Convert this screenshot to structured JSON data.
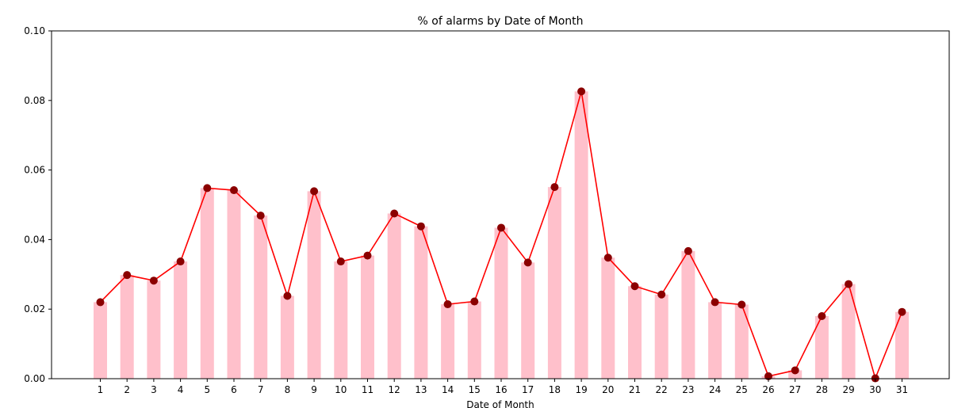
{
  "chart_data": {
    "type": "bar",
    "title": "% of alarms by Date of Month",
    "xlabel": "Date of Month",
    "ylabel": "",
    "ylim": [
      0,
      0.1
    ],
    "yticks": [
      "0.00",
      "0.02",
      "0.04",
      "0.06",
      "0.08",
      "0.10"
    ],
    "categories": [
      "1",
      "2",
      "3",
      "4",
      "5",
      "6",
      "7",
      "8",
      "9",
      "10",
      "11",
      "12",
      "13",
      "14",
      "15",
      "16",
      "17",
      "18",
      "19",
      "20",
      "21",
      "22",
      "23",
      "24",
      "25",
      "26",
      "27",
      "28",
      "29",
      "30",
      "31"
    ],
    "values": [
      0.022,
      0.0298,
      0.0282,
      0.0337,
      0.0548,
      0.0542,
      0.0469,
      0.0238,
      0.0539,
      0.0337,
      0.0354,
      0.0475,
      0.0438,
      0.0214,
      0.0222,
      0.0434,
      0.0334,
      0.0551,
      0.0826,
      0.0348,
      0.0266,
      0.0242,
      0.0367,
      0.022,
      0.0213,
      0.0007,
      0.0024,
      0.018,
      0.0272,
      0.0001,
      0.0192
    ],
    "bar_color": "#ffc0cb",
    "line_color": "#ff0000",
    "marker_color": "#8b0000",
    "grid": false,
    "legend": "none"
  }
}
